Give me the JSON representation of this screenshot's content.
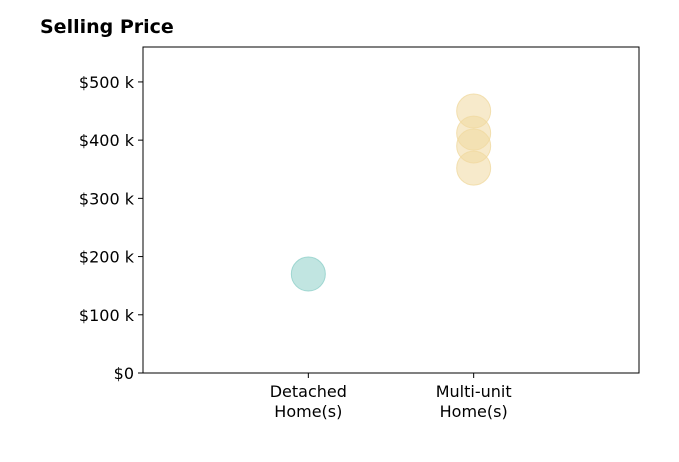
{
  "chart_data": {
    "type": "scatter",
    "title": "Selling Price",
    "categories": [
      "Detached|Home(s)",
      "Multi-unit|Home(s)"
    ],
    "y_tick_labels": [
      "$0",
      "$100 k",
      "$200 k",
      "$300 k",
      "$400 k",
      "$500 k"
    ],
    "y_ticks": [
      0,
      100,
      200,
      300,
      400,
      500
    ],
    "ylim": [
      0,
      560
    ],
    "xlim": [
      -1,
      2
    ],
    "grid": false,
    "points": [
      {
        "category": "Detached|Home(s)",
        "value": 170,
        "color": "#8ecfc9"
      },
      {
        "category": "Multi-unit|Home(s)",
        "value": 450,
        "color": "#f0d9a0"
      },
      {
        "category": "Multi-unit|Home(s)",
        "value": 412,
        "color": "#f0d9a0"
      },
      {
        "category": "Multi-unit|Home(s)",
        "value": 390,
        "color": "#f0d9a0"
      },
      {
        "category": "Multi-unit|Home(s)",
        "value": 352,
        "color": "#f0d9a0"
      }
    ]
  }
}
